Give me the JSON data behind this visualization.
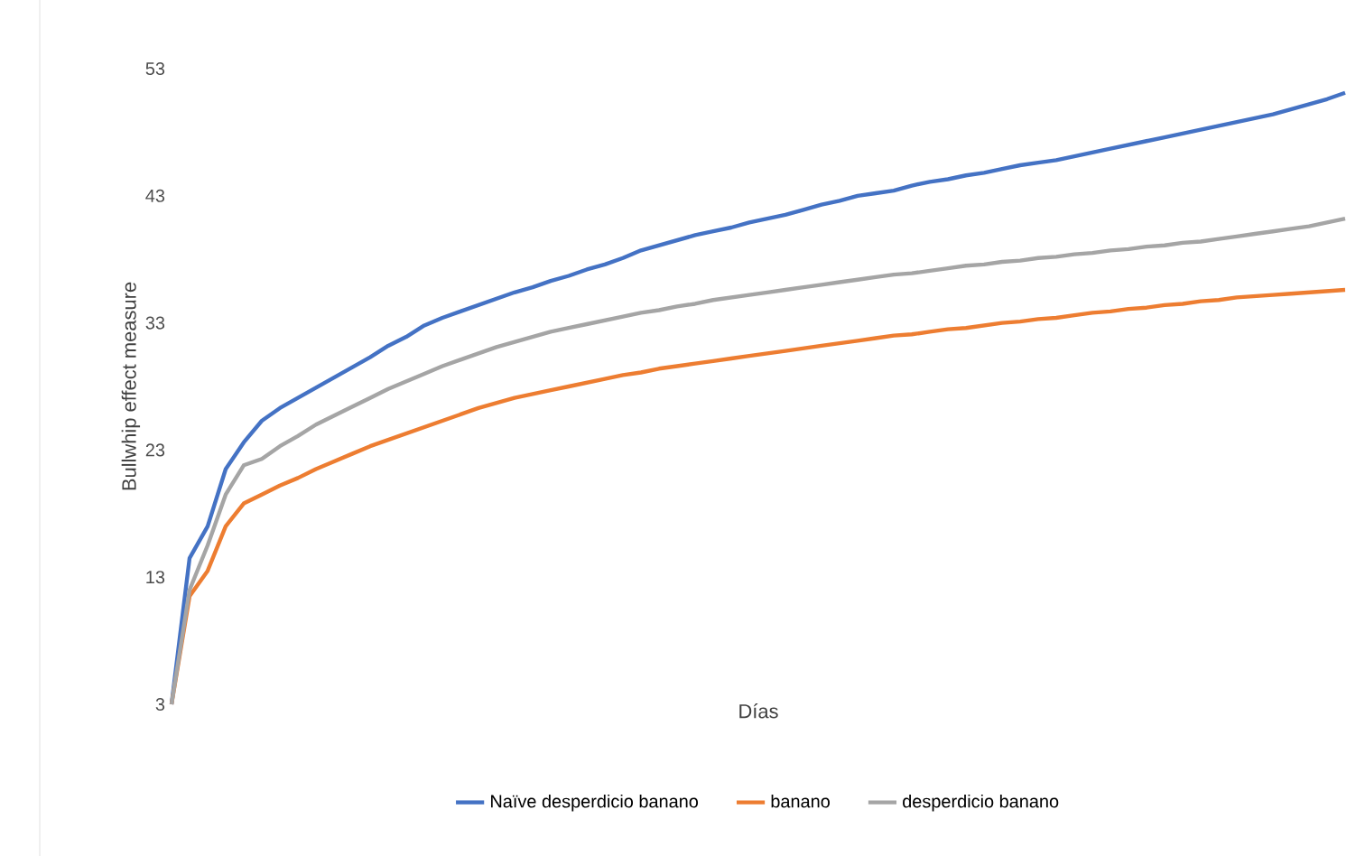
{
  "chart_data": {
    "type": "line",
    "xlabel": "Días",
    "ylabel": "Bullwhip effect measure",
    "categories": [
      null,
      null,
      null,
      null,
      null,
      null,
      null,
      null,
      null,
      null,
      null,
      null,
      null,
      null,
      null,
      null,
      null,
      null,
      null,
      null,
      null,
      null,
      null,
      null,
      null,
      null,
      null,
      null,
      null,
      null,
      null,
      null,
      null,
      null,
      null,
      null,
      null,
      null,
      null,
      null,
      null,
      null,
      null,
      null,
      null,
      null,
      null,
      null,
      null,
      null,
      null,
      null,
      null,
      null,
      null,
      null,
      null,
      null,
      null,
      null,
      null,
      null,
      null,
      null,
      null,
      null
    ],
    "ylim": [
      3,
      53
    ],
    "yticks": [
      3,
      13,
      23,
      33,
      43,
      53
    ],
    "tick_labels": "y",
    "grid": false,
    "legend": "bottom",
    "marker": "none",
    "line_style": "solid",
    "series": [
      {
        "name": "Naïve desperdicio banano",
        "color": "#4472c4",
        "values": [
          3,
          14.5,
          17,
          21.5,
          23.6,
          25.3,
          26.3,
          27.1,
          27.9,
          28.7,
          29.5,
          30.3,
          31.2,
          31.9,
          32.8,
          33.4,
          33.9,
          34.4,
          34.9,
          35.4,
          35.8,
          36.3,
          36.7,
          37.2,
          37.6,
          38.1,
          38.7,
          39.1,
          39.5,
          39.9,
          40.2,
          40.5,
          40.9,
          41.2,
          41.5,
          41.9,
          42.3,
          42.6,
          43,
          43.2,
          43.4,
          43.8,
          44.1,
          44.3,
          44.6,
          44.8,
          45.1,
          45.4,
          45.6,
          45.8,
          46.1,
          46.4,
          46.7,
          47,
          47.3,
          47.6,
          47.9,
          48.2,
          48.5,
          48.8,
          49.1,
          49.4,
          49.8,
          50.2,
          50.6,
          51.1
        ]
      },
      {
        "name": "banano",
        "color": "#ed7d31",
        "values": [
          3,
          11.5,
          13.5,
          17,
          18.8,
          19.5,
          20.2,
          20.8,
          21.5,
          22.1,
          22.7,
          23.3,
          23.8,
          24.3,
          24.8,
          25.3,
          25.8,
          26.3,
          26.7,
          27.1,
          27.4,
          27.7,
          28,
          28.3,
          28.6,
          28.9,
          29.1,
          29.4,
          29.6,
          29.8,
          30,
          30.2,
          30.4,
          30.6,
          30.8,
          31,
          31.2,
          31.4,
          31.6,
          31.8,
          32,
          32.1,
          32.3,
          32.5,
          32.6,
          32.8,
          33,
          33.1,
          33.3,
          33.4,
          33.6,
          33.8,
          33.9,
          34.1,
          34.2,
          34.4,
          34.5,
          34.7,
          34.8,
          35,
          35.1,
          35.2,
          35.3,
          35.4,
          35.5,
          35.6
        ]
      },
      {
        "name": "desperdicio banano",
        "color": "#a5a5a5",
        "values": [
          3,
          12,
          15.5,
          19.5,
          21.8,
          22.3,
          23.3,
          24.1,
          25,
          25.7,
          26.4,
          27.1,
          27.8,
          28.4,
          29,
          29.6,
          30.1,
          30.6,
          31.1,
          31.5,
          31.9,
          32.3,
          32.6,
          32.9,
          33.2,
          33.5,
          33.8,
          34,
          34.3,
          34.5,
          34.8,
          35,
          35.2,
          35.4,
          35.6,
          35.8,
          36,
          36.2,
          36.4,
          36.6,
          36.8,
          36.9,
          37.1,
          37.3,
          37.5,
          37.6,
          37.8,
          37.9,
          38.1,
          38.2,
          38.4,
          38.5,
          38.7,
          38.8,
          39,
          39.1,
          39.3,
          39.4,
          39.6,
          39.8,
          40,
          40.2,
          40.4,
          40.6,
          40.9,
          41.2
        ]
      }
    ]
  }
}
